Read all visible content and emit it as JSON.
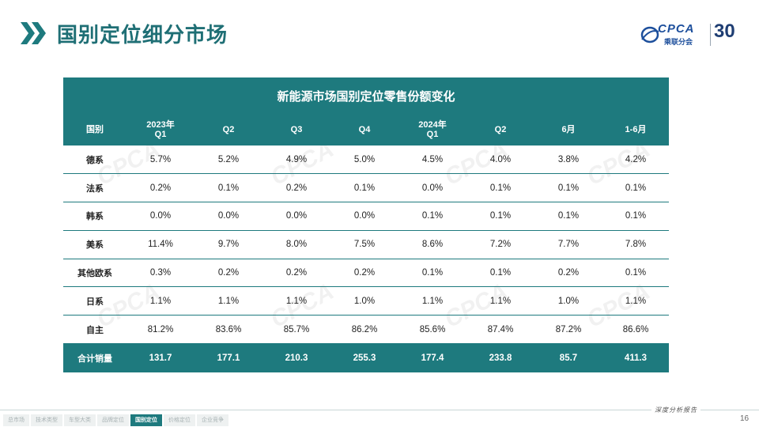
{
  "header": {
    "title": "国别定位细分市场",
    "logo_text": "CPCA",
    "logo_cn": "乘联分会",
    "logo_30": "30"
  },
  "table": {
    "title": "新能源市场国别定位零售份额变化",
    "columns": [
      {
        "line1": "国别",
        "line2": ""
      },
      {
        "line1": "2023年",
        "line2": "Q1"
      },
      {
        "line1": "",
        "line2": "Q2"
      },
      {
        "line1": "",
        "line2": "Q3"
      },
      {
        "line1": "",
        "line2": "Q4"
      },
      {
        "line1": "2024年",
        "line2": "Q1"
      },
      {
        "line1": "",
        "line2": "Q2"
      },
      {
        "line1": "",
        "line2": "6月"
      },
      {
        "line1": "",
        "line2": "1-6月"
      }
    ],
    "rows": [
      {
        "label": "德系",
        "values": [
          "5.7%",
          "5.2%",
          "4.9%",
          "5.0%",
          "4.5%",
          "4.0%",
          "3.8%",
          "4.2%"
        ]
      },
      {
        "label": "法系",
        "values": [
          "0.2%",
          "0.1%",
          "0.2%",
          "0.1%",
          "0.0%",
          "0.1%",
          "0.1%",
          "0.1%"
        ]
      },
      {
        "label": "韩系",
        "values": [
          "0.0%",
          "0.0%",
          "0.0%",
          "0.0%",
          "0.1%",
          "0.1%",
          "0.1%",
          "0.1%"
        ]
      },
      {
        "label": "美系",
        "values": [
          "11.4%",
          "9.7%",
          "8.0%",
          "7.5%",
          "8.6%",
          "7.2%",
          "7.7%",
          "7.8%"
        ]
      },
      {
        "label": "其他欧系",
        "values": [
          "0.3%",
          "0.2%",
          "0.2%",
          "0.2%",
          "0.1%",
          "0.1%",
          "0.2%",
          "0.1%"
        ]
      },
      {
        "label": "日系",
        "values": [
          "1.1%",
          "1.1%",
          "1.1%",
          "1.0%",
          "1.1%",
          "1.1%",
          "1.0%",
          "1.1%"
        ]
      },
      {
        "label": "自主",
        "values": [
          "81.2%",
          "83.6%",
          "85.7%",
          "86.2%",
          "85.6%",
          "87.4%",
          "87.2%",
          "86.6%"
        ]
      }
    ],
    "total": {
      "label": "合计销量",
      "values": [
        "131.7",
        "177.1",
        "210.3",
        "255.3",
        "177.4",
        "233.8",
        "85.7",
        "411.3"
      ]
    }
  },
  "footer": {
    "nav": [
      "总市场",
      "技术类型",
      "车型大类",
      "品牌定位",
      "国别定位",
      "价格定位",
      "企业竞争"
    ],
    "active_index": 4,
    "slogan": "深度分析报告",
    "page_number": "16"
  },
  "colors": {
    "accent": "#1e7a7e",
    "title_text": "#1f6f75",
    "logo_blue": "#1d4f9c"
  }
}
